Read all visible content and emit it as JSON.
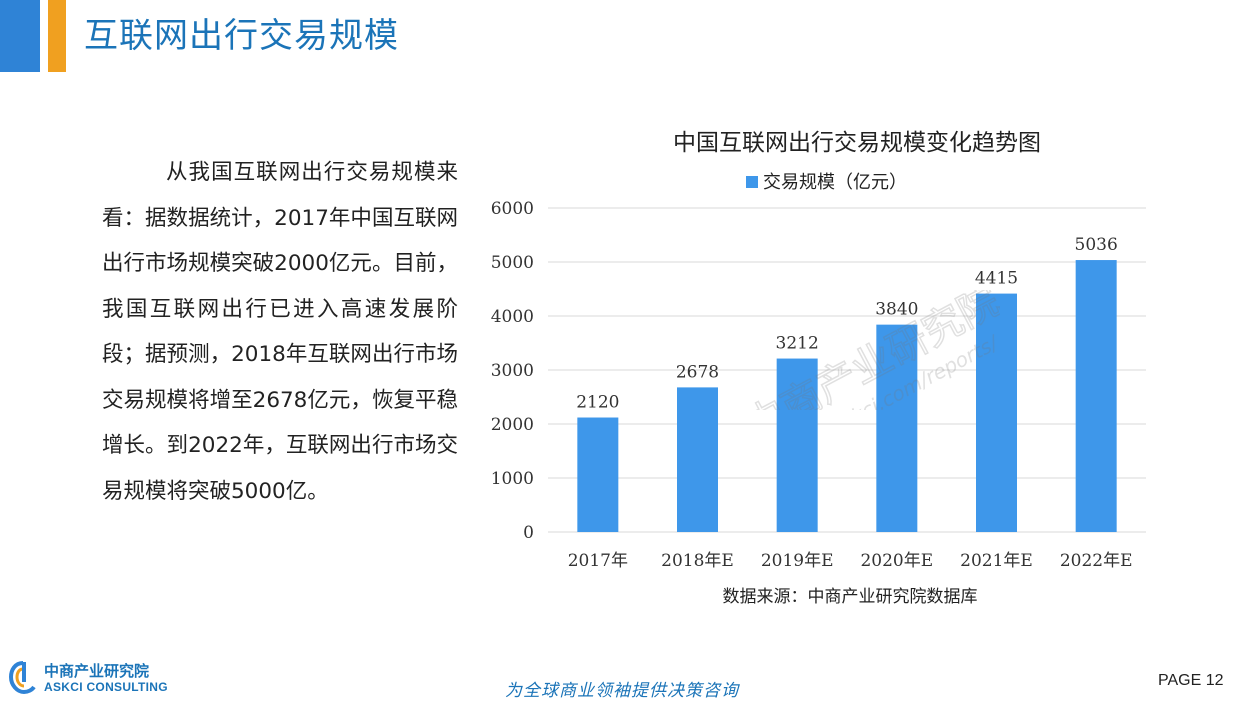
{
  "header": {
    "title": "互联网出行交易规模"
  },
  "body": {
    "paragraph": "从我国互联网出行交易规模来看：据数据统计，2017年中国互联网出行市场规模突破2000亿元。目前，我国互联网出行已进入高速发展阶段；据预测，2018年互联网出行市场交易规模将增至2678亿元，恢复平稳增长。到2022年，互联网出行市场交易规模将突破5000亿。"
  },
  "chart_data": {
    "type": "bar",
    "title": "中国互联网出行交易规模变化趋势图",
    "categories": [
      "2017年",
      "2018年E",
      "2019年E",
      "2020年E",
      "2021年E",
      "2022年E"
    ],
    "series": [
      {
        "name": "交易规模（亿元）",
        "values": [
          2120,
          2678,
          3212,
          3840,
          4415,
          5036
        ]
      }
    ],
    "ylim": [
      0,
      6000
    ],
    "yticks": [
      0,
      1000,
      2000,
      3000,
      4000,
      5000,
      6000
    ],
    "grid": true,
    "legend": "top",
    "bar_color": "#3e97ea",
    "source": "数据来源：中商产业研究院数据库"
  },
  "watermark": {
    "text1": "中商产业研究院",
    "text2": "www.askci.com/reports/"
  },
  "footer": {
    "logo_name": "中商产业研究院",
    "logo_sub": "ASKCI CONSULTING",
    "slogan": "为全球商业领袖提供决策咨询",
    "page": "PAGE 12"
  },
  "colors": {
    "accent_blue": "#2f83d6",
    "accent_orange": "#f0a020",
    "title_blue": "#1b74b8"
  }
}
